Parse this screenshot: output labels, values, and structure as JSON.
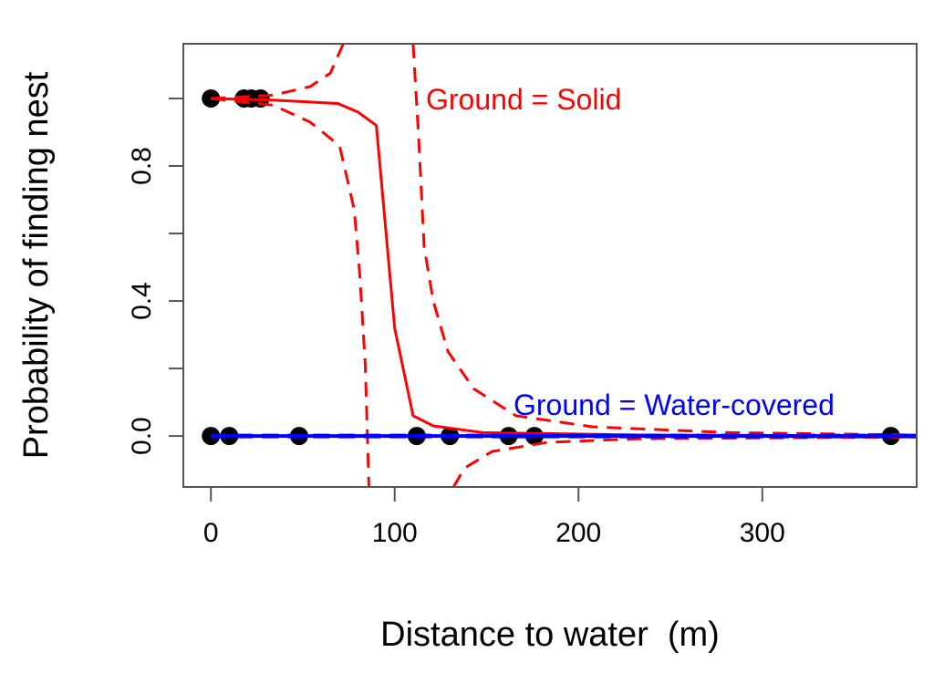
{
  "chart_data": {
    "type": "line",
    "title": "",
    "xlabel": "Distance to water  (m)",
    "ylabel": "Probability of finding nest",
    "xlim": [
      -15,
      384
    ],
    "ylim": [
      -0.151,
      1.162
    ],
    "x_ticks": [
      0,
      100,
      200,
      300
    ],
    "x_tick_labels": [
      "0",
      "100",
      "200",
      "300"
    ],
    "y_ticks": [
      0.0,
      0.2,
      0.4,
      0.6,
      0.8,
      1.0
    ],
    "y_tick_labels": [
      "0.0",
      "",
      "0.4",
      "",
      "0.8",
      ""
    ],
    "grid": false,
    "colors": {
      "solid": "#ff0000",
      "water": "#0000ff",
      "points": "#000000"
    },
    "points": {
      "x": [
        0,
        18,
        22,
        27,
        0,
        10,
        48,
        112,
        130,
        162,
        176,
        370
      ],
      "y": [
        1,
        1,
        1,
        1,
        0,
        0,
        0,
        0,
        0,
        0,
        0,
        0
      ]
    },
    "series": [
      {
        "name": "Solid fit",
        "color": "#ff0000",
        "dash": false,
        "x": [
          0,
          34,
          69,
          80,
          90,
          100,
          110,
          121,
          148,
          233,
          384
        ],
        "y": [
          1.0,
          0.995,
          0.985,
          0.96,
          0.92,
          0.32,
          0.06,
          0.03,
          0.01,
          0.003,
          0.0
        ]
      },
      {
        "name": "Solid upper CI (a)",
        "color": "#ff0000",
        "dash": true,
        "x": [
          0,
          34,
          54,
          65,
          72
        ],
        "y": [
          1.0,
          1.01,
          1.035,
          1.075,
          1.162
        ]
      },
      {
        "name": "Solid upper CI (b)",
        "color": "#ff0000",
        "dash": true,
        "x": [
          110,
          113,
          116,
          121,
          129,
          143,
          166,
          208,
          282,
          384
        ],
        "y": [
          1.162,
          0.89,
          0.56,
          0.4,
          0.25,
          0.14,
          0.06,
          0.027,
          0.01,
          0.003
        ]
      },
      {
        "name": "Solid lower CI (a)",
        "color": "#ff0000",
        "dash": true,
        "x": [
          0,
          34,
          54,
          70,
          78,
          81,
          84,
          86
        ],
        "y": [
          1.0,
          0.98,
          0.93,
          0.86,
          0.67,
          0.48,
          0.21,
          -0.151
        ]
      },
      {
        "name": "Solid lower CI (b)",
        "color": "#ff0000",
        "dash": true,
        "x": [
          132,
          138,
          153,
          183,
          233,
          384
        ],
        "y": [
          -0.151,
          -0.095,
          -0.046,
          -0.019,
          -0.008,
          -0.003
        ]
      },
      {
        "name": "Water-covered fit",
        "color": "#0000ff",
        "dash": false,
        "x": [
          0,
          384
        ],
        "y": [
          0.0,
          0.0
        ]
      },
      {
        "name": "Water-covered CI",
        "color": "#0000ff",
        "dash": true,
        "x": [
          0,
          384
        ],
        "y": [
          0.0,
          0.0
        ]
      }
    ],
    "annotations": [
      {
        "text": "Ground = Solid",
        "x": 118,
        "y": 1.0,
        "color": "#ff0000"
      },
      {
        "text": "Ground = Water-covered",
        "x": 165,
        "y": 0.09,
        "color": "#0000ff"
      }
    ]
  }
}
